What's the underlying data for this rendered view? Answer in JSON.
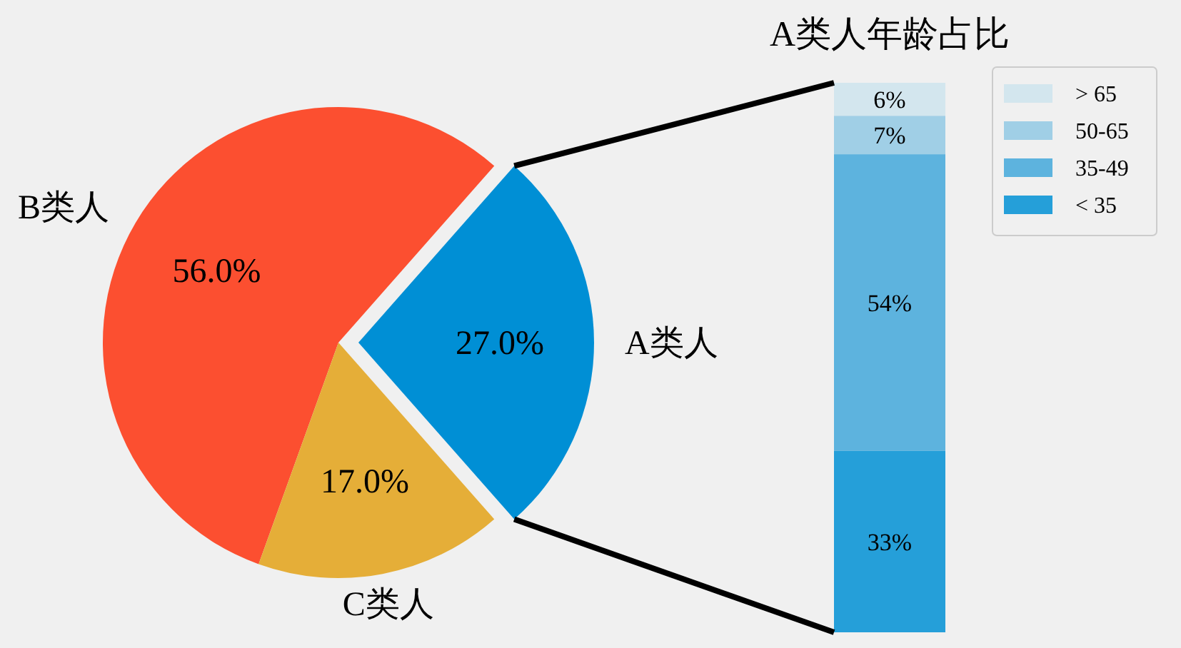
{
  "chart_data": [
    {
      "type": "pie",
      "categories": [
        "A类人",
        "B类人",
        "C类人"
      ],
      "values": [
        27,
        56,
        17
      ],
      "colors": [
        "#008fd5",
        "#fc4f30",
        "#e5ae38"
      ],
      "value_labels": [
        "27.0%",
        "56.0%",
        "17.0%"
      ]
    },
    {
      "type": "bar",
      "title": "A类人年龄占比",
      "categories": [
        null
      ],
      "stacked": true,
      "legend": "right",
      "series": [
        {
          "name": "< 35",
          "color": "#259fd9",
          "values": [
            33
          ],
          "value_labels": [
            "33%"
          ]
        },
        {
          "name": "35-49",
          "color": "#5db3de",
          "values": [
            54
          ],
          "value_labels": [
            "54%"
          ]
        },
        {
          "name": "50-65",
          "color": "#a0cfe6",
          "values": [
            7
          ],
          "value_labels": [
            "7%"
          ]
        },
        {
          "name": "> 65",
          "color": "#d3e6ee",
          "values": [
            6
          ],
          "value_labels": [
            "6%"
          ]
        }
      ]
    }
  ]
}
